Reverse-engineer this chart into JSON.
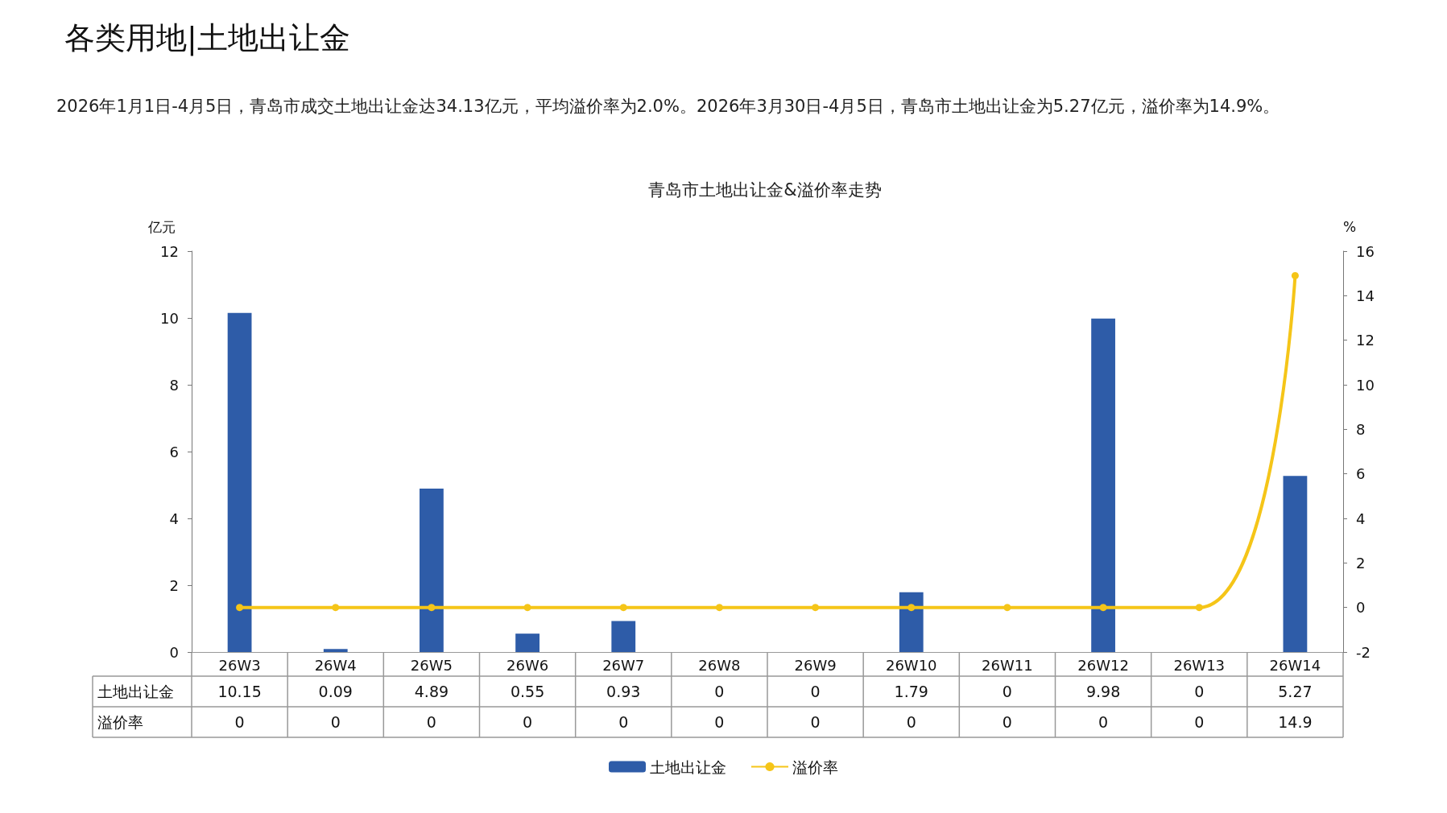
{
  "chart_data": {
    "type": "bar",
    "title": "青岛市土地出让金&溢价率走势",
    "annotations": [
      "各类用地|土地出让金",
      "2026年1月1日-4月5日，青岛市成交土地出让金达34.13亿元，平均溢价率为2.0%。2026年3月30日-4月5日，青岛市土地出让金为5.27亿元，溢价率为14.9%。"
    ],
    "categories": [
      "26W3",
      "26W4",
      "26W5",
      "26W6",
      "26W7",
      "26W8",
      "26W9",
      "26W10",
      "26W11",
      "26W12",
      "26W13",
      "26W14"
    ],
    "series": [
      {
        "name": "土地出让金",
        "color": "#2e5ca8",
        "values": [
          10.15,
          0.09,
          4.89,
          0.55,
          0.93,
          0,
          0,
          1.79,
          0,
          9.98,
          0,
          5.27
        ]
      },
      {
        "name": "溢价率",
        "type": "line",
        "axis": "y2",
        "color": "#f5c518",
        "values": [
          0,
          0,
          0,
          0,
          0,
          0,
          0,
          0,
          0,
          0,
          0,
          14.9
        ]
      }
    ],
    "ylabel": "亿元",
    "y2label": "%",
    "ylim": [
      0,
      12
    ],
    "yticks": [
      0,
      2,
      4,
      6,
      8,
      10,
      12
    ],
    "y2lim": [
      -2,
      16
    ],
    "y2ticks": [
      -2,
      0,
      2,
      4,
      6,
      8,
      10,
      12,
      14,
      16
    ],
    "legend": "bottom",
    "marker": "circle",
    "data_labels": true
  }
}
